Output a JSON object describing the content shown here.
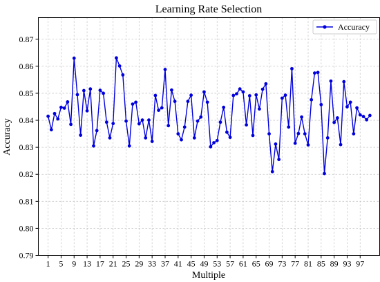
{
  "chart_data": {
    "type": "line",
    "title": "Learning Rate Selection",
    "xlabel": "Multiple",
    "ylabel": "Accuracy",
    "xlim": [
      -2,
      103
    ],
    "ylim": [
      0.79,
      0.878
    ],
    "xticks": [
      1,
      5,
      9,
      13,
      17,
      21,
      25,
      29,
      33,
      37,
      41,
      45,
      49,
      53,
      57,
      61,
      65,
      69,
      73,
      77,
      81,
      85,
      89,
      93,
      97
    ],
    "yticks": [
      0.79,
      0.8,
      0.81,
      0.82,
      0.83,
      0.84,
      0.85,
      0.86,
      0.87
    ],
    "ytick_labels": [
      "0.79",
      "0.80",
      "0.81",
      "0.82",
      "0.83",
      "0.84",
      "0.85",
      "0.86",
      "0.87"
    ],
    "grid": true,
    "legend": "top-right",
    "series": [
      {
        "name": "Accuracy",
        "color": "#0000dd",
        "marker": "circle",
        "x": [
          1,
          2,
          3,
          4,
          5,
          6,
          7,
          8,
          9,
          10,
          11,
          12,
          13,
          14,
          15,
          16,
          17,
          18,
          19,
          20,
          21,
          22,
          23,
          24,
          25,
          26,
          27,
          28,
          29,
          30,
          31,
          32,
          33,
          34,
          35,
          36,
          37,
          38,
          39,
          40,
          41,
          42,
          43,
          44,
          45,
          46,
          47,
          48,
          49,
          50,
          51,
          52,
          53,
          54,
          55,
          56,
          57,
          58,
          59,
          60,
          61,
          62,
          63,
          64,
          65,
          66,
          67,
          68,
          69,
          70,
          71,
          72,
          73,
          74,
          75,
          76,
          77,
          78,
          79,
          80,
          81,
          82,
          83,
          84,
          85,
          86,
          87,
          88,
          89,
          90,
          91,
          92,
          93,
          94,
          95,
          96,
          97,
          98,
          99,
          100
        ],
        "values": [
          0.8415,
          0.8365,
          0.8425,
          0.8405,
          0.8448,
          0.8445,
          0.8468,
          0.8385,
          0.863,
          0.8495,
          0.8345,
          0.851,
          0.8435,
          0.8516,
          0.8305,
          0.8362,
          0.8511,
          0.85,
          0.8393,
          0.8335,
          0.8388,
          0.8631,
          0.8601,
          0.8568,
          0.8397,
          0.8305,
          0.846,
          0.8467,
          0.8387,
          0.8401,
          0.8335,
          0.8401,
          0.8322,
          0.8492,
          0.8437,
          0.8446,
          0.8588,
          0.838,
          0.8512,
          0.847,
          0.835,
          0.8328,
          0.8375,
          0.847,
          0.8493,
          0.8335,
          0.8397,
          0.8412,
          0.8505,
          0.8467,
          0.8302,
          0.8317,
          0.8325,
          0.8393,
          0.8448,
          0.8356,
          0.8337,
          0.8492,
          0.8498,
          0.8516,
          0.8505,
          0.8383,
          0.8491,
          0.8344,
          0.8494,
          0.8442,
          0.8515,
          0.8535,
          0.835,
          0.821,
          0.8312,
          0.8255,
          0.8482,
          0.8493,
          0.8375,
          0.8591,
          0.8315,
          0.8351,
          0.8412,
          0.835,
          0.8309,
          0.8476,
          0.8575,
          0.8577,
          0.8458,
          0.8203,
          0.8335,
          0.8545,
          0.8392,
          0.8409,
          0.831,
          0.8543,
          0.845,
          0.8467,
          0.835,
          0.8446,
          0.842,
          0.8414,
          0.8402,
          0.8418
        ]
      }
    ]
  }
}
